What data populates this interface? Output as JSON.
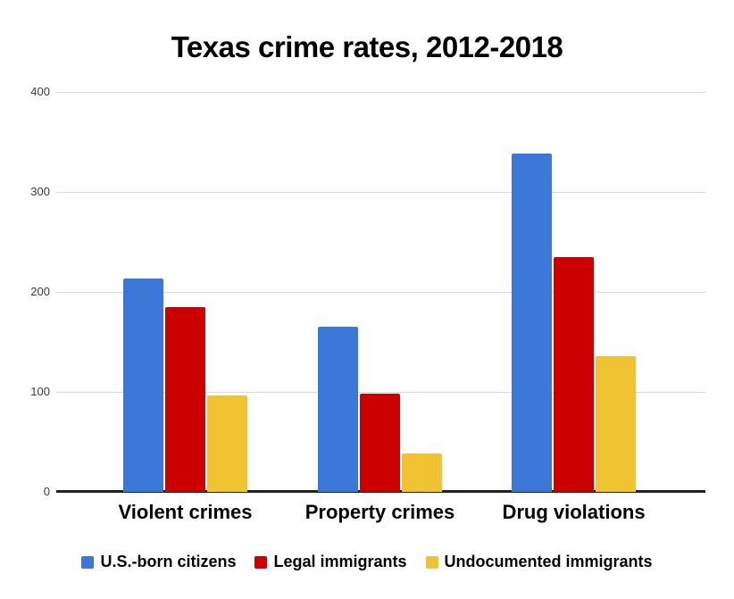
{
  "title": "Texas crime rates, 2012-2018",
  "colors": {
    "background": "#ffffff",
    "gridline": "#d9d9d9",
    "axis_line": "#212121",
    "tick_label": "#3c3c3c",
    "series_blue": "#3c78d8",
    "series_red": "#cc0000",
    "series_yellow": "#f1c232"
  },
  "legend": {
    "entries": [
      "U.S.-born citizens",
      "Legal immigrants",
      "Undocumented immigrants"
    ]
  },
  "chart_data": {
    "type": "bar",
    "title": "Texas crime rates, 2012-2018",
    "categories": [
      "Violent crimes",
      "Property crimes",
      "Drug violations"
    ],
    "series": [
      {
        "name": "U.S.-born citizens",
        "color": "#3c78d8",
        "values": [
          213,
          165,
          338
        ]
      },
      {
        "name": "Legal immigrants",
        "color": "#cc0000",
        "values": [
          185,
          98,
          235
        ]
      },
      {
        "name": "Undocumented immigrants",
        "color": "#f1c232",
        "values": [
          96,
          38,
          136
        ]
      }
    ],
    "xlabel": "",
    "ylabel": "",
    "ylim": [
      0,
      400
    ],
    "yticks": [
      0,
      100,
      200,
      300,
      400
    ],
    "grid": true,
    "legend_position": "bottom"
  }
}
